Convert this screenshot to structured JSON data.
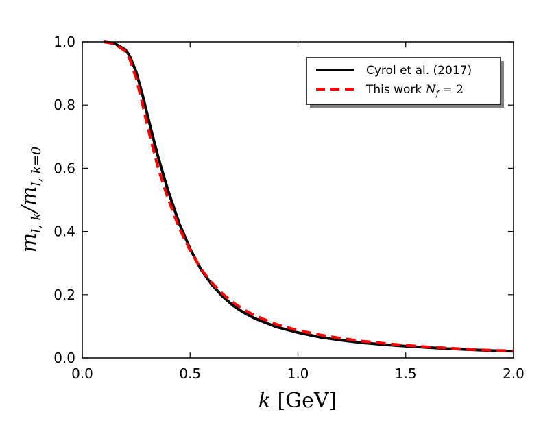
{
  "chart_data": {
    "type": "line",
    "title": "",
    "xlabel": "k [GeV]",
    "ylabel": "m_{l,k}/m_{l,k=0}",
    "xlim": [
      0.0,
      2.0
    ],
    "ylim": [
      0.0,
      1.0
    ],
    "xticks": [
      "0.0",
      "0.5",
      "1.0",
      "1.5",
      "2.0"
    ],
    "yticks": [
      "0.0",
      "0.2",
      "0.4",
      "0.6",
      "0.8",
      "1.0"
    ],
    "grid": false,
    "legend_position": "top-right",
    "series": [
      {
        "name": "Cyrol et al. (2017)",
        "color": "#000000",
        "style": "solid",
        "x": [
          0.1,
          0.15,
          0.2,
          0.22,
          0.25,
          0.28,
          0.3,
          0.32,
          0.35,
          0.38,
          0.4,
          0.43,
          0.45,
          0.5,
          0.55,
          0.6,
          0.65,
          0.7,
          0.75,
          0.8,
          0.9,
          1.0,
          1.1,
          1.2,
          1.3,
          1.4,
          1.5,
          1.6,
          1.7,
          1.8,
          1.9,
          2.0
        ],
        "y": [
          1.0,
          0.995,
          0.975,
          0.955,
          0.905,
          0.83,
          0.775,
          0.72,
          0.64,
          0.57,
          0.525,
          0.465,
          0.425,
          0.345,
          0.28,
          0.232,
          0.195,
          0.165,
          0.143,
          0.125,
          0.098,
          0.08,
          0.066,
          0.056,
          0.048,
          0.042,
          0.037,
          0.033,
          0.029,
          0.026,
          0.023,
          0.021
        ]
      },
      {
        "name": "This work N_f = 2",
        "color": "#ff0000",
        "style": "dashed",
        "x": [
          0.1,
          0.15,
          0.2,
          0.22,
          0.25,
          0.28,
          0.3,
          0.32,
          0.35,
          0.38,
          0.4,
          0.43,
          0.45,
          0.5,
          0.55,
          0.6,
          0.65,
          0.7,
          0.75,
          0.8,
          0.9,
          1.0,
          1.1,
          1.2,
          1.3,
          1.4,
          1.5,
          1.6,
          1.7,
          1.8,
          1.9,
          2.0
        ],
        "y": [
          1.0,
          0.994,
          0.97,
          0.945,
          0.885,
          0.8,
          0.74,
          0.685,
          0.605,
          0.54,
          0.5,
          0.445,
          0.41,
          0.34,
          0.282,
          0.238,
          0.203,
          0.175,
          0.152,
          0.134,
          0.106,
          0.087,
          0.073,
          0.062,
          0.053,
          0.046,
          0.04,
          0.035,
          0.031,
          0.027,
          0.024,
          0.022
        ]
      }
    ]
  }
}
